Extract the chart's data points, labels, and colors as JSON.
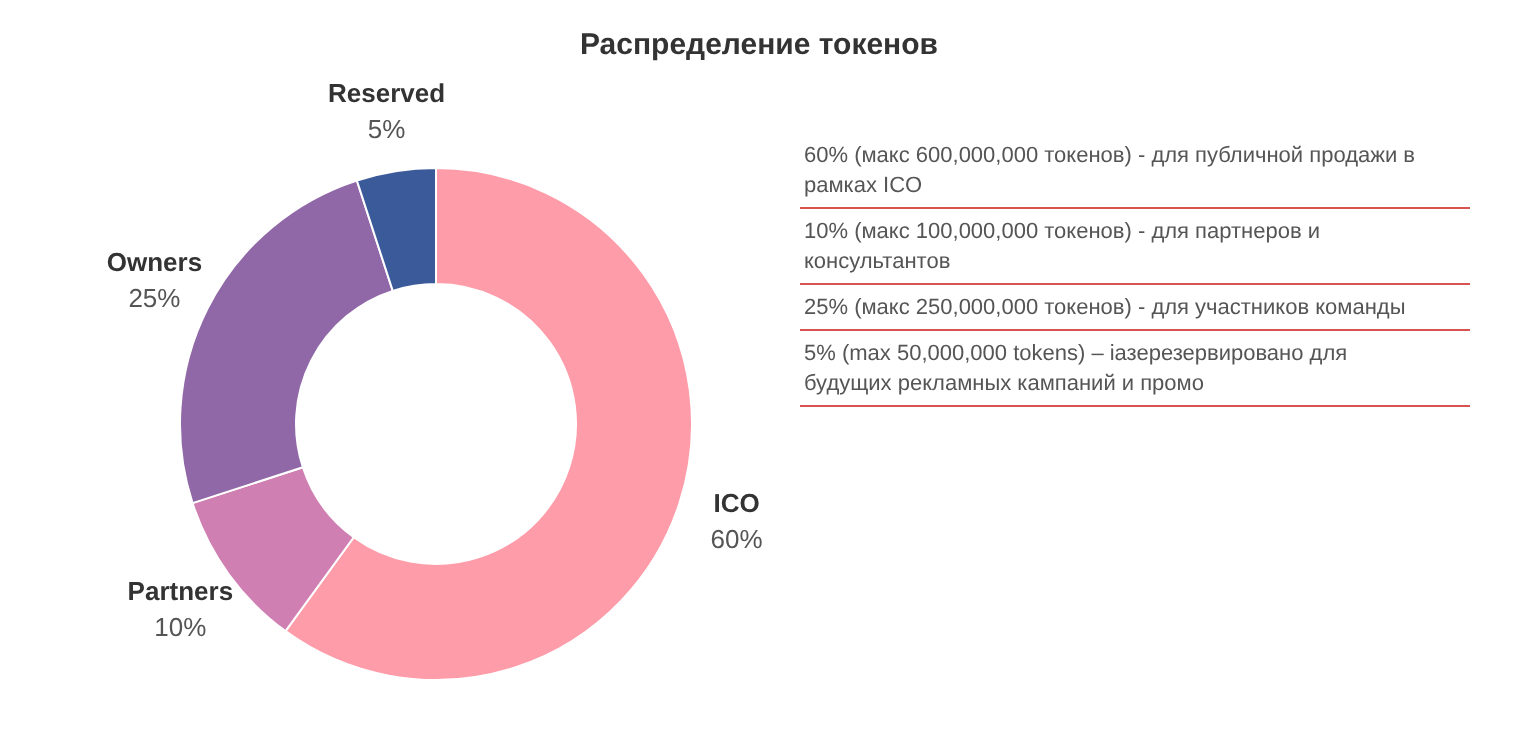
{
  "chart_data": {
    "type": "donut",
    "title": "Распределение токенов",
    "categories": [
      "ICO",
      "Partners",
      "Owners",
      "Reserved"
    ],
    "values": [
      60,
      10,
      25,
      5
    ],
    "colors": [
      "#fe9ca9",
      "#d07fb2",
      "#9068a8",
      "#3b5a9a"
    ],
    "value_labels": [
      "60%",
      "10%",
      "25%",
      "5%"
    ],
    "legend": false,
    "annotations": [
      "60% (макс 600,000,000 токенов) - для публичной продажи в рамках ICO",
      "10% (макс 100,000,000 токенов) - для партнеров и консультантов",
      "25% (макс 250,000,000 токенов) - для участников команды",
      "5% (max 50,000,000 tokens) – іазерезервировано для будущих рекламных кампаний и промо"
    ]
  }
}
